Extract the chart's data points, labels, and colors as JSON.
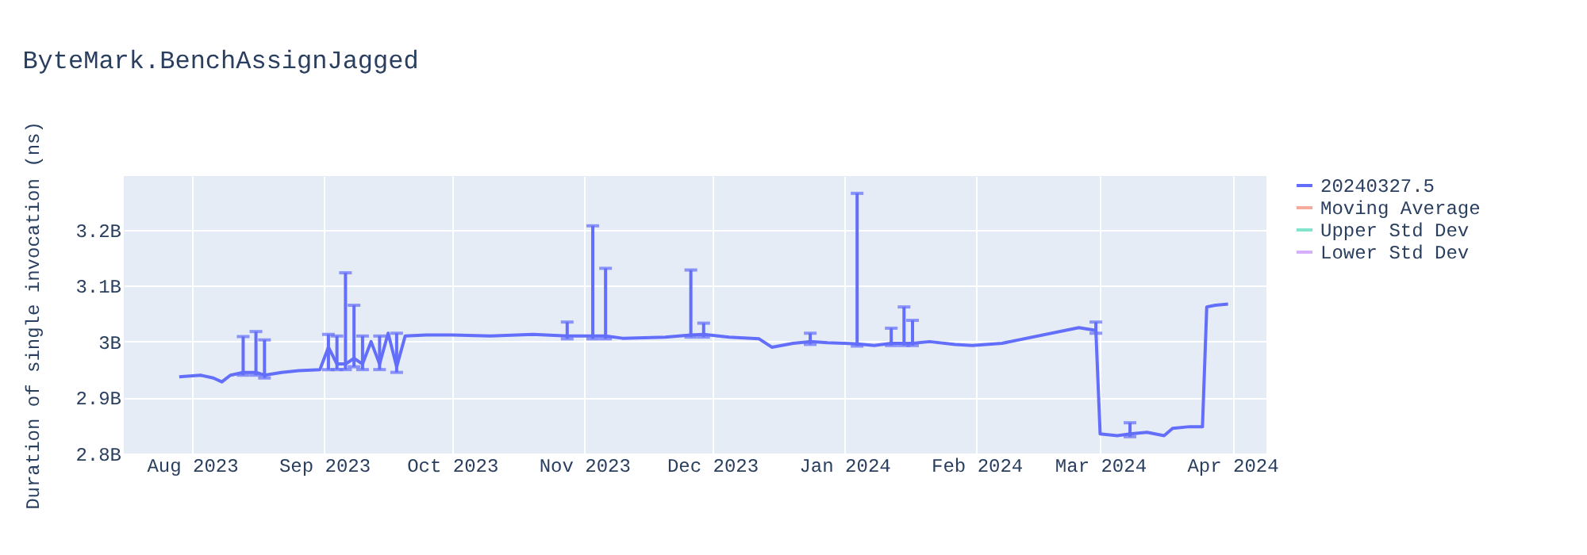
{
  "chart_data": {
    "type": "line",
    "title": "ByteMark.BenchAssignJagged",
    "ylabel": "Duration of single invocation (ns)",
    "x": [
      "2023-07-29",
      "2023-08-03",
      "2023-08-06",
      "2023-08-08",
      "2023-08-10",
      "2023-08-13",
      "2023-08-16",
      "2023-08-18",
      "2023-08-22",
      "2023-08-26",
      "2023-08-31",
      "2023-09-02",
      "2023-09-04",
      "2023-09-06",
      "2023-09-08",
      "2023-09-10",
      "2023-09-12",
      "2023-09-14",
      "2023-09-16",
      "2023-09-18",
      "2023-09-20",
      "2023-09-25",
      "2023-10-01",
      "2023-10-10",
      "2023-10-20",
      "2023-10-28",
      "2023-11-03",
      "2023-11-06",
      "2023-11-10",
      "2023-11-20",
      "2023-11-26",
      "2023-11-29",
      "2023-12-05",
      "2023-12-12",
      "2023-12-15",
      "2023-12-20",
      "2023-12-24",
      "2023-12-28",
      "2024-01-01",
      "2024-01-04",
      "2024-01-08",
      "2024-01-12",
      "2024-01-15",
      "2024-01-17",
      "2024-01-21",
      "2024-01-27",
      "2024-01-31",
      "2024-02-07",
      "2024-02-25",
      "2024-02-29",
      "2024-03-01",
      "2024-03-05",
      "2024-03-08",
      "2024-03-12",
      "2024-03-16",
      "2024-03-18",
      "2024-03-22",
      "2024-03-25",
      "2024-03-26",
      "2024-03-28",
      "2024-03-31"
    ],
    "series": [
      {
        "name": "20240327.5",
        "color": "#636efa",
        "values": [
          2937000000,
          2940000000,
          2935000000,
          2928000000,
          2940000000,
          2945000000,
          2945000000,
          2940000000,
          2945000000,
          2948000000,
          2950000000,
          2990000000,
          2960000000,
          2960000000,
          2970000000,
          2960000000,
          3000000000,
          2960000000,
          3015000000,
          2955000000,
          3010000000,
          3012000000,
          3012000000,
          3010000000,
          3013000000,
          3010000000,
          3010000000,
          3010000000,
          3006000000,
          3008000000,
          3012000000,
          3013000000,
          3008000000,
          3005000000,
          2990000000,
          2997000000,
          3000000000,
          2998000000,
          2997000000,
          2996000000,
          2993000000,
          2997000000,
          2997000000,
          2997000000,
          3000000000,
          2995000000,
          2993000000,
          2997000000,
          3025000000,
          3020000000,
          2835000000,
          2832000000,
          2835000000,
          2838000000,
          2832000000,
          2845000000,
          2848000000,
          2848000000,
          3062000000,
          3065000000,
          3067000000
        ],
        "errors": [
          null,
          null,
          null,
          null,
          null,
          [
            2940000000,
            3009000000
          ],
          [
            2940000000,
            3018000000
          ],
          [
            2935000000,
            3003000000
          ],
          null,
          null,
          null,
          [
            2950000000,
            3013000000
          ],
          [
            2950000000,
            3010000000
          ],
          [
            2950000000,
            3123000000
          ],
          [
            2955000000,
            3065000000
          ],
          [
            2950000000,
            3010000000
          ],
          null,
          [
            2950000000,
            3010000000
          ],
          null,
          [
            2945000000,
            3015000000
          ],
          null,
          null,
          null,
          null,
          null,
          [
            3005000000,
            3035000000
          ],
          [
            3005000000,
            3207000000
          ],
          [
            3005000000,
            3131000000
          ],
          null,
          null,
          [
            3008000000,
            3128000000
          ],
          [
            3008000000,
            3033000000
          ],
          null,
          null,
          null,
          null,
          [
            2995000000,
            3015000000
          ],
          null,
          null,
          [
            2992000000,
            3265000000
          ],
          null,
          [
            2993000000,
            3024000000
          ],
          [
            2993000000,
            3062000000
          ],
          [
            2993000000,
            3038000000
          ],
          null,
          null,
          null,
          null,
          null,
          [
            3015000000,
            3035000000
          ],
          null,
          null,
          [
            2830000000,
            2855000000
          ],
          null,
          null,
          null,
          null,
          null,
          null,
          null,
          null
        ]
      },
      {
        "name": "Moving Average",
        "color": "#f7ab9d",
        "values": [
          null,
          null,
          null,
          null,
          null,
          null,
          null,
          null,
          null,
          null,
          null,
          null,
          null,
          null,
          null,
          null,
          null,
          null,
          null,
          null,
          null,
          null,
          null,
          null,
          null,
          null,
          null,
          null,
          null,
          null,
          null,
          null,
          null,
          null,
          null,
          null,
          null,
          null,
          null,
          null,
          null,
          null,
          null,
          null,
          null,
          null,
          null,
          null,
          null,
          null,
          null,
          null,
          null,
          null,
          null,
          null,
          null,
          null,
          null,
          null,
          null
        ]
      },
      {
        "name": "Upper Std Dev",
        "color": "#80e5cb",
        "values": [
          null,
          null,
          null,
          null,
          null,
          null,
          null,
          null,
          null,
          null,
          null,
          null,
          null,
          null,
          null,
          null,
          null,
          null,
          null,
          null,
          null,
          null,
          null,
          null,
          null,
          null,
          null,
          null,
          null,
          null,
          null,
          null,
          null,
          null,
          null,
          null,
          null,
          null,
          null,
          null,
          null,
          null,
          null,
          null,
          null,
          null,
          null,
          null,
          null,
          null,
          null,
          null,
          null,
          null,
          null,
          null,
          null,
          null,
          null,
          null,
          null
        ]
      },
      {
        "name": "Lower Std Dev",
        "color": "#d5b1fd",
        "values": [
          null,
          null,
          null,
          null,
          null,
          null,
          null,
          null,
          null,
          null,
          null,
          null,
          null,
          null,
          null,
          null,
          null,
          null,
          null,
          null,
          null,
          null,
          null,
          null,
          null,
          null,
          null,
          null,
          null,
          null,
          null,
          null,
          null,
          null,
          null,
          null,
          null,
          null,
          null,
          null,
          null,
          null,
          null,
          null,
          null,
          null,
          null,
          null,
          null,
          null,
          null,
          null,
          null,
          null,
          null,
          null,
          null,
          null,
          null,
          null,
          null
        ]
      }
    ],
    "xlim": [
      "2023-07-16",
      "2024-04-09"
    ],
    "xticks": [
      {
        "value": "2023-08-01",
        "label": "Aug 2023"
      },
      {
        "value": "2023-09-01",
        "label": "Sep 2023"
      },
      {
        "value": "2023-10-01",
        "label": "Oct 2023"
      },
      {
        "value": "2023-11-01",
        "label": "Nov 2023"
      },
      {
        "value": "2023-12-01",
        "label": "Dec 2023"
      },
      {
        "value": "2024-01-01",
        "label": "Jan 2024"
      },
      {
        "value": "2024-02-01",
        "label": "Feb 2024"
      },
      {
        "value": "2024-03-01",
        "label": "Mar 2024"
      },
      {
        "value": "2024-04-01",
        "label": "Apr 2024"
      }
    ],
    "ylim": [
      2800000000,
      3296000000
    ],
    "yticks": [
      {
        "value": 2800000000,
        "label": "2.8B"
      },
      {
        "value": 2900000000,
        "label": "2.9B"
      },
      {
        "value": 3000000000,
        "label": "3B"
      },
      {
        "value": 3100000000,
        "label": "3.1B"
      },
      {
        "value": 3200000000,
        "label": "3.2B"
      }
    ],
    "grid": true,
    "legend": "top right",
    "marker": "none",
    "line_style": "solid"
  }
}
